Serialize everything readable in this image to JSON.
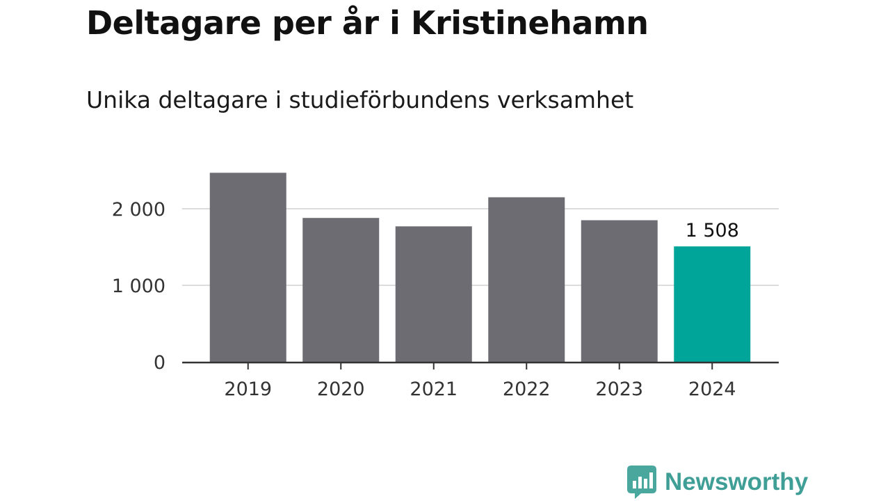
{
  "header": {
    "title": "Deltagare per år i Kristinehamn",
    "subtitle": "Unika deltagare i studieförbundens verksamhet"
  },
  "chart_data": {
    "type": "bar",
    "title": "Deltagare per år i Kristinehamn",
    "subtitle": "Unika deltagare i studieförbundens verksamhet",
    "xlabel": "",
    "ylabel": "",
    "categories": [
      "2019",
      "2020",
      "2021",
      "2022",
      "2023",
      "2024"
    ],
    "values": [
      2470,
      1880,
      1770,
      2150,
      1850,
      1508
    ],
    "ylim": [
      0,
      2000
    ],
    "yticks": [
      0,
      1000,
      2000
    ],
    "ytick_labels": [
      "0",
      "1 000",
      "2 000"
    ],
    "grid": true,
    "legend": "none",
    "highlight_index": 5,
    "data_labels": [
      {
        "index": 5,
        "text": "1 508"
      }
    ],
    "colors": {
      "bar": "#6d6c72",
      "highlight": "#00a59a",
      "grid": "#dcdcdc",
      "axis": "#333333",
      "text": "#333333"
    }
  },
  "brand": {
    "name": "Newsworthy",
    "icon": "newsworthy-logo-icon",
    "color": "#3f9e95",
    "icon_color": "#4aa79e"
  }
}
